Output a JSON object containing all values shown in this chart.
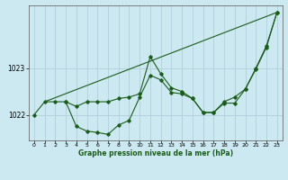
{
  "bg_color": "#cce8f0",
  "grid_color": "#b0d0dc",
  "line_color": "#1a5c1a",
  "title": "Graphe pression niveau de la mer (hPa)",
  "xlim": [
    -0.5,
    23.5
  ],
  "ylim": [
    1021.45,
    1024.35
  ],
  "yticks": [
    1022,
    1023
  ],
  "xticks": [
    0,
    1,
    2,
    3,
    4,
    5,
    6,
    7,
    8,
    9,
    10,
    11,
    12,
    13,
    14,
    15,
    16,
    17,
    18,
    19,
    20,
    21,
    22,
    23
  ],
  "line1_x": [
    0,
    1,
    2,
    3,
    4,
    5,
    6,
    7,
    8,
    9,
    10,
    11,
    12,
    13,
    14,
    15,
    16,
    17,
    18,
    19,
    20,
    21,
    22,
    23
  ],
  "line1_y": [
    1022.0,
    1022.28,
    1022.28,
    1022.28,
    1021.75,
    1021.65,
    1021.62,
    1021.58,
    1021.78,
    1021.88,
    1022.38,
    1022.85,
    1022.75,
    1022.48,
    1022.45,
    1022.35,
    1022.05,
    1022.05,
    1022.25,
    1022.25,
    1022.55,
    1023.0,
    1023.48,
    1024.2
  ],
  "line2_x": [
    1,
    23
  ],
  "line2_y": [
    1022.28,
    1024.2
  ],
  "line3_x": [
    3,
    4,
    5,
    6,
    7,
    8,
    9,
    10,
    11,
    12,
    13,
    14,
    15,
    16,
    17,
    18,
    19,
    20,
    21,
    22,
    23
  ],
  "line3_y": [
    1022.28,
    1022.18,
    1022.28,
    1022.28,
    1022.28,
    1022.35,
    1022.38,
    1022.45,
    1023.25,
    1022.88,
    1022.58,
    1022.5,
    1022.35,
    1022.05,
    1022.05,
    1022.28,
    1022.38,
    1022.55,
    1022.98,
    1023.45,
    1024.2
  ]
}
